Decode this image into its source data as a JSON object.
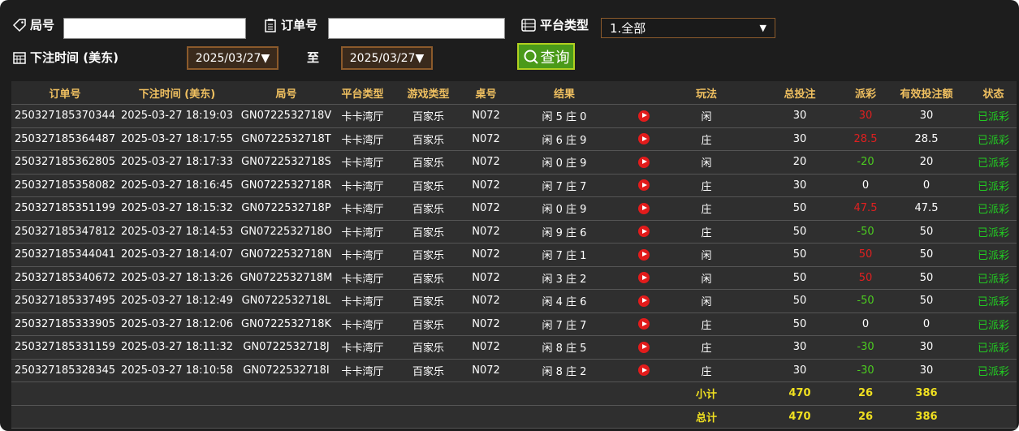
{
  "filters": {
    "round_label": "局号",
    "order_label": "订单号",
    "platform_label": "平台类型",
    "platform_value": "1.全部",
    "time_label": "下注时间 (美东)",
    "date_from": "2025/03/27",
    "to_label": "至",
    "date_to": "2025/03/27",
    "query_button": "查询"
  },
  "table": {
    "header": [
      "订单号",
      "下注时间 (美东)",
      "局号",
      "平台类型",
      "游戏类型",
      "桌号",
      "结果",
      "玩法",
      "总投注",
      "派彩",
      "有效投注额",
      "状态"
    ],
    "rows": [
      [
        "250327185370344",
        "2025-03-27 18:19:03",
        "GN0722532718V",
        "卡卡湾厅",
        "百家乐",
        "N072",
        "闲 5 庄 0",
        "闲",
        30,
        30,
        30,
        "已派彩"
      ],
      [
        "250327185364487",
        "2025-03-27 18:17:55",
        "GN0722532718T",
        "卡卡湾厅",
        "百家乐",
        "N072",
        "闲 6 庄 9",
        "庄",
        30,
        28.5,
        28.5,
        "已派彩"
      ],
      [
        "250327185362805",
        "2025-03-27 18:17:33",
        "GN0722532718S",
        "卡卡湾厅",
        "百家乐",
        "N072",
        "闲 0 庄 9",
        "闲",
        20,
        -20,
        20,
        "已派彩"
      ],
      [
        "250327185358082",
        "2025-03-27 18:16:45",
        "GN0722532718R",
        "卡卡湾厅",
        "百家乐",
        "N072",
        "闲 7 庄 7",
        "庄",
        30,
        0,
        0,
        "已派彩"
      ],
      [
        "250327185351199",
        "2025-03-27 18:15:32",
        "GN0722532718P",
        "卡卡湾厅",
        "百家乐",
        "N072",
        "闲 0 庄 9",
        "庄",
        50,
        47.5,
        47.5,
        "已派彩"
      ],
      [
        "250327185347812",
        "2025-03-27 18:14:53",
        "GN0722532718O",
        "卡卡湾厅",
        "百家乐",
        "N072",
        "闲 9 庄 6",
        "庄",
        50,
        -50,
        50,
        "已派彩"
      ],
      [
        "250327185344041",
        "2025-03-27 18:14:07",
        "GN0722532718N",
        "卡卡湾厅",
        "百家乐",
        "N072",
        "闲 7 庄 1",
        "闲",
        50,
        50,
        50,
        "已派彩"
      ],
      [
        "250327185340672",
        "2025-03-27 18:13:26",
        "GN0722532718M",
        "卡卡湾厅",
        "百家乐",
        "N072",
        "闲 3 庄 2",
        "闲",
        50,
        50,
        50,
        "已派彩"
      ],
      [
        "250327185337495",
        "2025-03-27 18:12:49",
        "GN0722532718L",
        "卡卡湾厅",
        "百家乐",
        "N072",
        "闲 4 庄 6",
        "闲",
        50,
        -50,
        50,
        "已派彩"
      ],
      [
        "250327185333905",
        "2025-03-27 18:12:06",
        "GN0722532718K",
        "卡卡湾厅",
        "百家乐",
        "N072",
        "闲 7 庄 7",
        "庄",
        50,
        0,
        0,
        "已派彩"
      ],
      [
        "250327185331159",
        "2025-03-27 18:11:32",
        "GN0722532718J",
        "卡卡湾厅",
        "百家乐",
        "N072",
        "闲 8 庄 5",
        "庄",
        30,
        -30,
        30,
        "已派彩"
      ],
      [
        "250327185328345",
        "2025-03-27 18:10:58",
        "GN0722532718I",
        "卡卡湾厅",
        "百家乐",
        "N072",
        "闲 8 庄 2",
        "庄",
        30,
        -30,
        30,
        "已派彩"
      ]
    ],
    "totals": [
      [
        "小计",
        470,
        26,
        386
      ],
      [
        "总计",
        470,
        26,
        386
      ]
    ]
  }
}
